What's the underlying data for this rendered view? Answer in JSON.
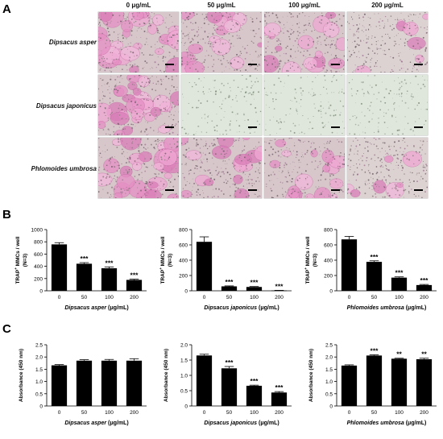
{
  "panel_letters": {
    "a": "A",
    "b": "B",
    "c": "C"
  },
  "micrographs": {
    "columns": [
      "0 μg/mL",
      "50 μg/mL",
      "100 μg/mL",
      "200 μg/mL"
    ],
    "rows": [
      {
        "label": "Dipsacus asper",
        "cells": [
          {
            "density": "high",
            "tint": "pink"
          },
          {
            "density": "medium",
            "tint": "pink"
          },
          {
            "density": "medium",
            "tint": "pink"
          },
          {
            "density": "low",
            "tint": "pink"
          }
        ]
      },
      {
        "label": "Dipsacus japonicus",
        "cells": [
          {
            "density": "high",
            "tint": "pink"
          },
          {
            "density": "none",
            "tint": "green"
          },
          {
            "density": "none",
            "tint": "green"
          },
          {
            "density": "none",
            "tint": "green"
          }
        ]
      },
      {
        "label": "Phlomoides umbrosa",
        "cells": [
          {
            "density": "high",
            "tint": "pink"
          },
          {
            "density": "medium",
            "tint": "pink"
          },
          {
            "density": "medium",
            "tint": "pink"
          },
          {
            "density": "low",
            "tint": "pink"
          }
        ]
      }
    ]
  },
  "chart_data": [
    {
      "id": "b1",
      "type": "bar",
      "categories": [
        "0",
        "50",
        "100",
        "200"
      ],
      "values": [
        758,
        442,
        368,
        178
      ],
      "errors": [
        28,
        18,
        22,
        12
      ],
      "sig": [
        "",
        "***",
        "***",
        "***"
      ],
      "ylabel_main": "TRAP",
      "ylabel_sup": "+",
      "ylabel_rest": " MMCs / well",
      "ylabel_n": "(N=3)",
      "xlabel_italic": "Dipsacus asper",
      "xlabel_rest": " (μg/mL)",
      "ylim": [
        0,
        1000
      ],
      "yticks": [
        "0",
        "200",
        "400",
        "600",
        "800",
        "1000"
      ]
    },
    {
      "id": "b2",
      "type": "bar",
      "categories": [
        "0",
        "50",
        "100",
        "200"
      ],
      "values": [
        640,
        58,
        50,
        4
      ],
      "errors": [
        65,
        6,
        6,
        2
      ],
      "sig": [
        "",
        "***",
        "***",
        "***"
      ],
      "ylabel_main": "TRAP",
      "ylabel_sup": "+",
      "ylabel_rest": " MMCs / well",
      "ylabel_n": "(N=3)",
      "xlabel_italic": "Dipsacus japonicus",
      "xlabel_rest": " (μg/mL)",
      "ylim": [
        0,
        800
      ],
      "yticks": [
        "0",
        "200",
        "400",
        "600",
        "800"
      ]
    },
    {
      "id": "b3",
      "type": "bar",
      "categories": [
        "0",
        "50",
        "100",
        "200"
      ],
      "values": [
        672,
        378,
        172,
        75
      ],
      "errors": [
        38,
        14,
        10,
        8
      ],
      "sig": [
        "",
        "***",
        "***",
        "***"
      ],
      "ylabel_main": "TRAP",
      "ylabel_sup": "+",
      "ylabel_rest": " MMCs / well",
      "ylabel_n": "(N=3)",
      "xlabel_italic": "Phlomoides umbrosa",
      "xlabel_rest": " (μg/mL)",
      "ylim": [
        0,
        800
      ],
      "yticks": [
        "0",
        "200",
        "400",
        "600",
        "800"
      ]
    },
    {
      "id": "c1",
      "type": "bar",
      "categories": [
        "0",
        "50",
        "100",
        "200"
      ],
      "values": [
        1.66,
        1.85,
        1.85,
        1.85
      ],
      "errors": [
        0.03,
        0.04,
        0.05,
        0.08
      ],
      "sig": [
        "",
        "",
        "",
        ""
      ],
      "ylabel_main": "Absorbance (450 nm)",
      "ylabel_sup": "",
      "ylabel_rest": "",
      "ylabel_n": "",
      "xlabel_italic": "Dipsacus asper",
      "xlabel_rest": " (μg/mL)",
      "ylim": [
        0,
        2.5
      ],
      "yticks": [
        "0",
        "0.5",
        "1.0",
        "1.5",
        "2.0",
        "2.5"
      ]
    },
    {
      "id": "c2",
      "type": "bar",
      "categories": [
        "0",
        "50",
        "100",
        "200"
      ],
      "values": [
        1.65,
        1.23,
        0.66,
        0.44
      ],
      "errors": [
        0.04,
        0.06,
        0.02,
        0.03
      ],
      "sig": [
        "",
        "***",
        "***",
        "***"
      ],
      "ylabel_main": "Absorbance (450 nm)",
      "ylabel_sup": "",
      "ylabel_rest": "",
      "ylabel_n": "",
      "xlabel_italic": "Dipsacus japonicus",
      "xlabel_rest": " (μg/mL)",
      "ylim": [
        0,
        2.0
      ],
      "yticks": [
        "0",
        "0.5",
        "1.0",
        "1.5",
        "2.0"
      ]
    },
    {
      "id": "c3",
      "type": "bar",
      "categories": [
        "0",
        "50",
        "100",
        "200"
      ],
      "values": [
        1.65,
        2.06,
        1.93,
        1.91
      ],
      "errors": [
        0.03,
        0.03,
        0.02,
        0.04
      ],
      "sig": [
        "",
        "***",
        "**",
        "**"
      ],
      "ylabel_main": "Absorbance (450 nm)",
      "ylabel_sup": "",
      "ylabel_rest": "",
      "ylabel_n": "",
      "xlabel_italic": "Phlomoides umbrosa",
      "xlabel_rest": " (μg/mL)",
      "ylim": [
        0,
        2.5
      ],
      "yticks": [
        "0",
        "0.5",
        "1.0",
        "1.5",
        "2.0",
        "2.5"
      ]
    }
  ]
}
